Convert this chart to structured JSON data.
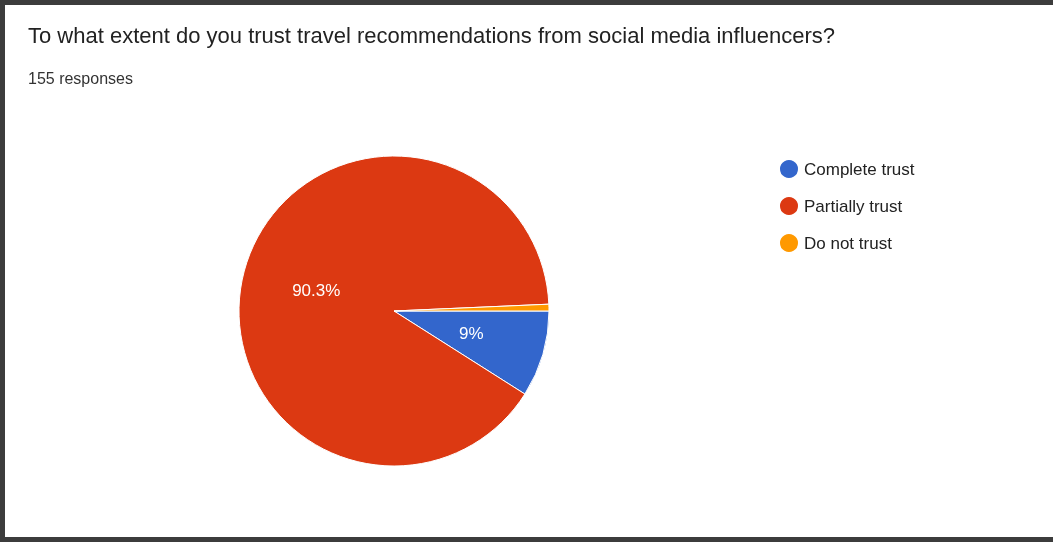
{
  "chart_data": {
    "type": "pie",
    "title": "To what extent do you trust travel recommendations from social media influencers?",
    "subtitle": "155 responses",
    "categories": [
      "Complete trust",
      "Partially trust",
      "Do not trust"
    ],
    "values": [
      9,
      90.3,
      0.7
    ],
    "colors": [
      "#3366cc",
      "#dc3912",
      "#ff9900"
    ],
    "value_labels": [
      "9%",
      "90.3%",
      null
    ],
    "legend": "right"
  }
}
